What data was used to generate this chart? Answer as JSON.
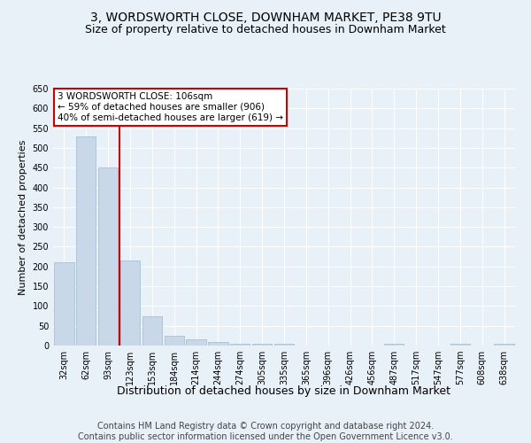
{
  "title": "3, WORDSWORTH CLOSE, DOWNHAM MARKET, PE38 9TU",
  "subtitle": "Size of property relative to detached houses in Downham Market",
  "xlabel": "Distribution of detached houses by size in Downham Market",
  "ylabel": "Number of detached properties",
  "categories": [
    "32sqm",
    "62sqm",
    "93sqm",
    "123sqm",
    "153sqm",
    "184sqm",
    "214sqm",
    "244sqm",
    "274sqm",
    "305sqm",
    "335sqm",
    "365sqm",
    "396sqm",
    "426sqm",
    "456sqm",
    "487sqm",
    "517sqm",
    "547sqm",
    "577sqm",
    "608sqm",
    "638sqm"
  ],
  "values": [
    210,
    530,
    450,
    215,
    75,
    25,
    15,
    10,
    5,
    5,
    5,
    0,
    0,
    0,
    0,
    5,
    0,
    0,
    5,
    0,
    5
  ],
  "bar_color": "#c8d8e8",
  "bar_edge_color": "#a0b8cc",
  "background_color": "#e8f0f8",
  "grid_color": "#ffffff",
  "red_line_index": 3,
  "annotation_text": "3 WORDSWORTH CLOSE: 106sqm\n← 59% of detached houses are smaller (906)\n40% of semi-detached houses are larger (619) →",
  "annotation_box_color": "#ffffff",
  "annotation_border_color": "#cc0000",
  "footer": "Contains HM Land Registry data © Crown copyright and database right 2024.\nContains public sector information licensed under the Open Government Licence v3.0.",
  "ylim": [
    0,
    650
  ],
  "yticks": [
    0,
    50,
    100,
    150,
    200,
    250,
    300,
    350,
    400,
    450,
    500,
    550,
    600,
    650
  ],
  "title_fontsize": 10,
  "subtitle_fontsize": 9,
  "xlabel_fontsize": 9,
  "ylabel_fontsize": 8,
  "tick_fontsize": 7,
  "annotation_fontsize": 7.5,
  "footer_fontsize": 7
}
